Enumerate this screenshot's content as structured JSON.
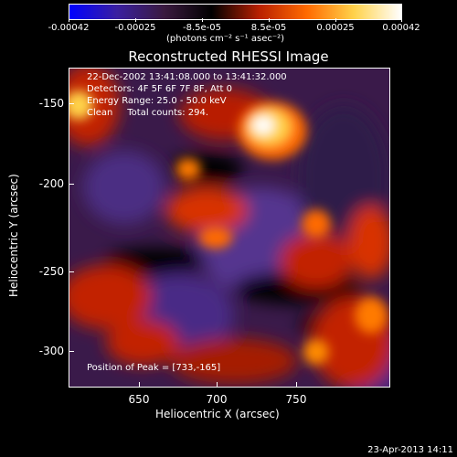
{
  "colorbar": {
    "gradient": [
      "#0000ff",
      "#3a1fa0",
      "#3a1a3f",
      "#000000",
      "#b82000",
      "#ff6a00",
      "#ffd24a",
      "#ffffff"
    ],
    "ticks": [
      "-0.00042",
      "-0.00025",
      "-8.5e-05",
      "8.5e-05",
      "0.00025",
      "0.00042"
    ],
    "units_label": "(photons cm⁻² s⁻¹ asec⁻²)"
  },
  "title": "Reconstructed RHESSI Image",
  "annotations": {
    "line1": "22-Dec-2002 13:41:08.000 to 13:41:32.000",
    "line2": "Detectors: 4F 5F 6F 7F 8F, Att 0",
    "line3": "Energy Range: 25.0 - 50.0 keV",
    "line4": "Clean     Total counts: 294.",
    "peak": "Position of Peak = [733,-165]"
  },
  "axes": {
    "xlabel": "Heliocentric X (arcsec)",
    "ylabel": "Heliocentric Y (arcsec)",
    "xticks": [
      "650",
      "700",
      "750"
    ],
    "yticks": [
      "-150",
      "-200",
      "-250",
      "-300"
    ]
  },
  "footer": "23-Apr-2013 14:11"
}
